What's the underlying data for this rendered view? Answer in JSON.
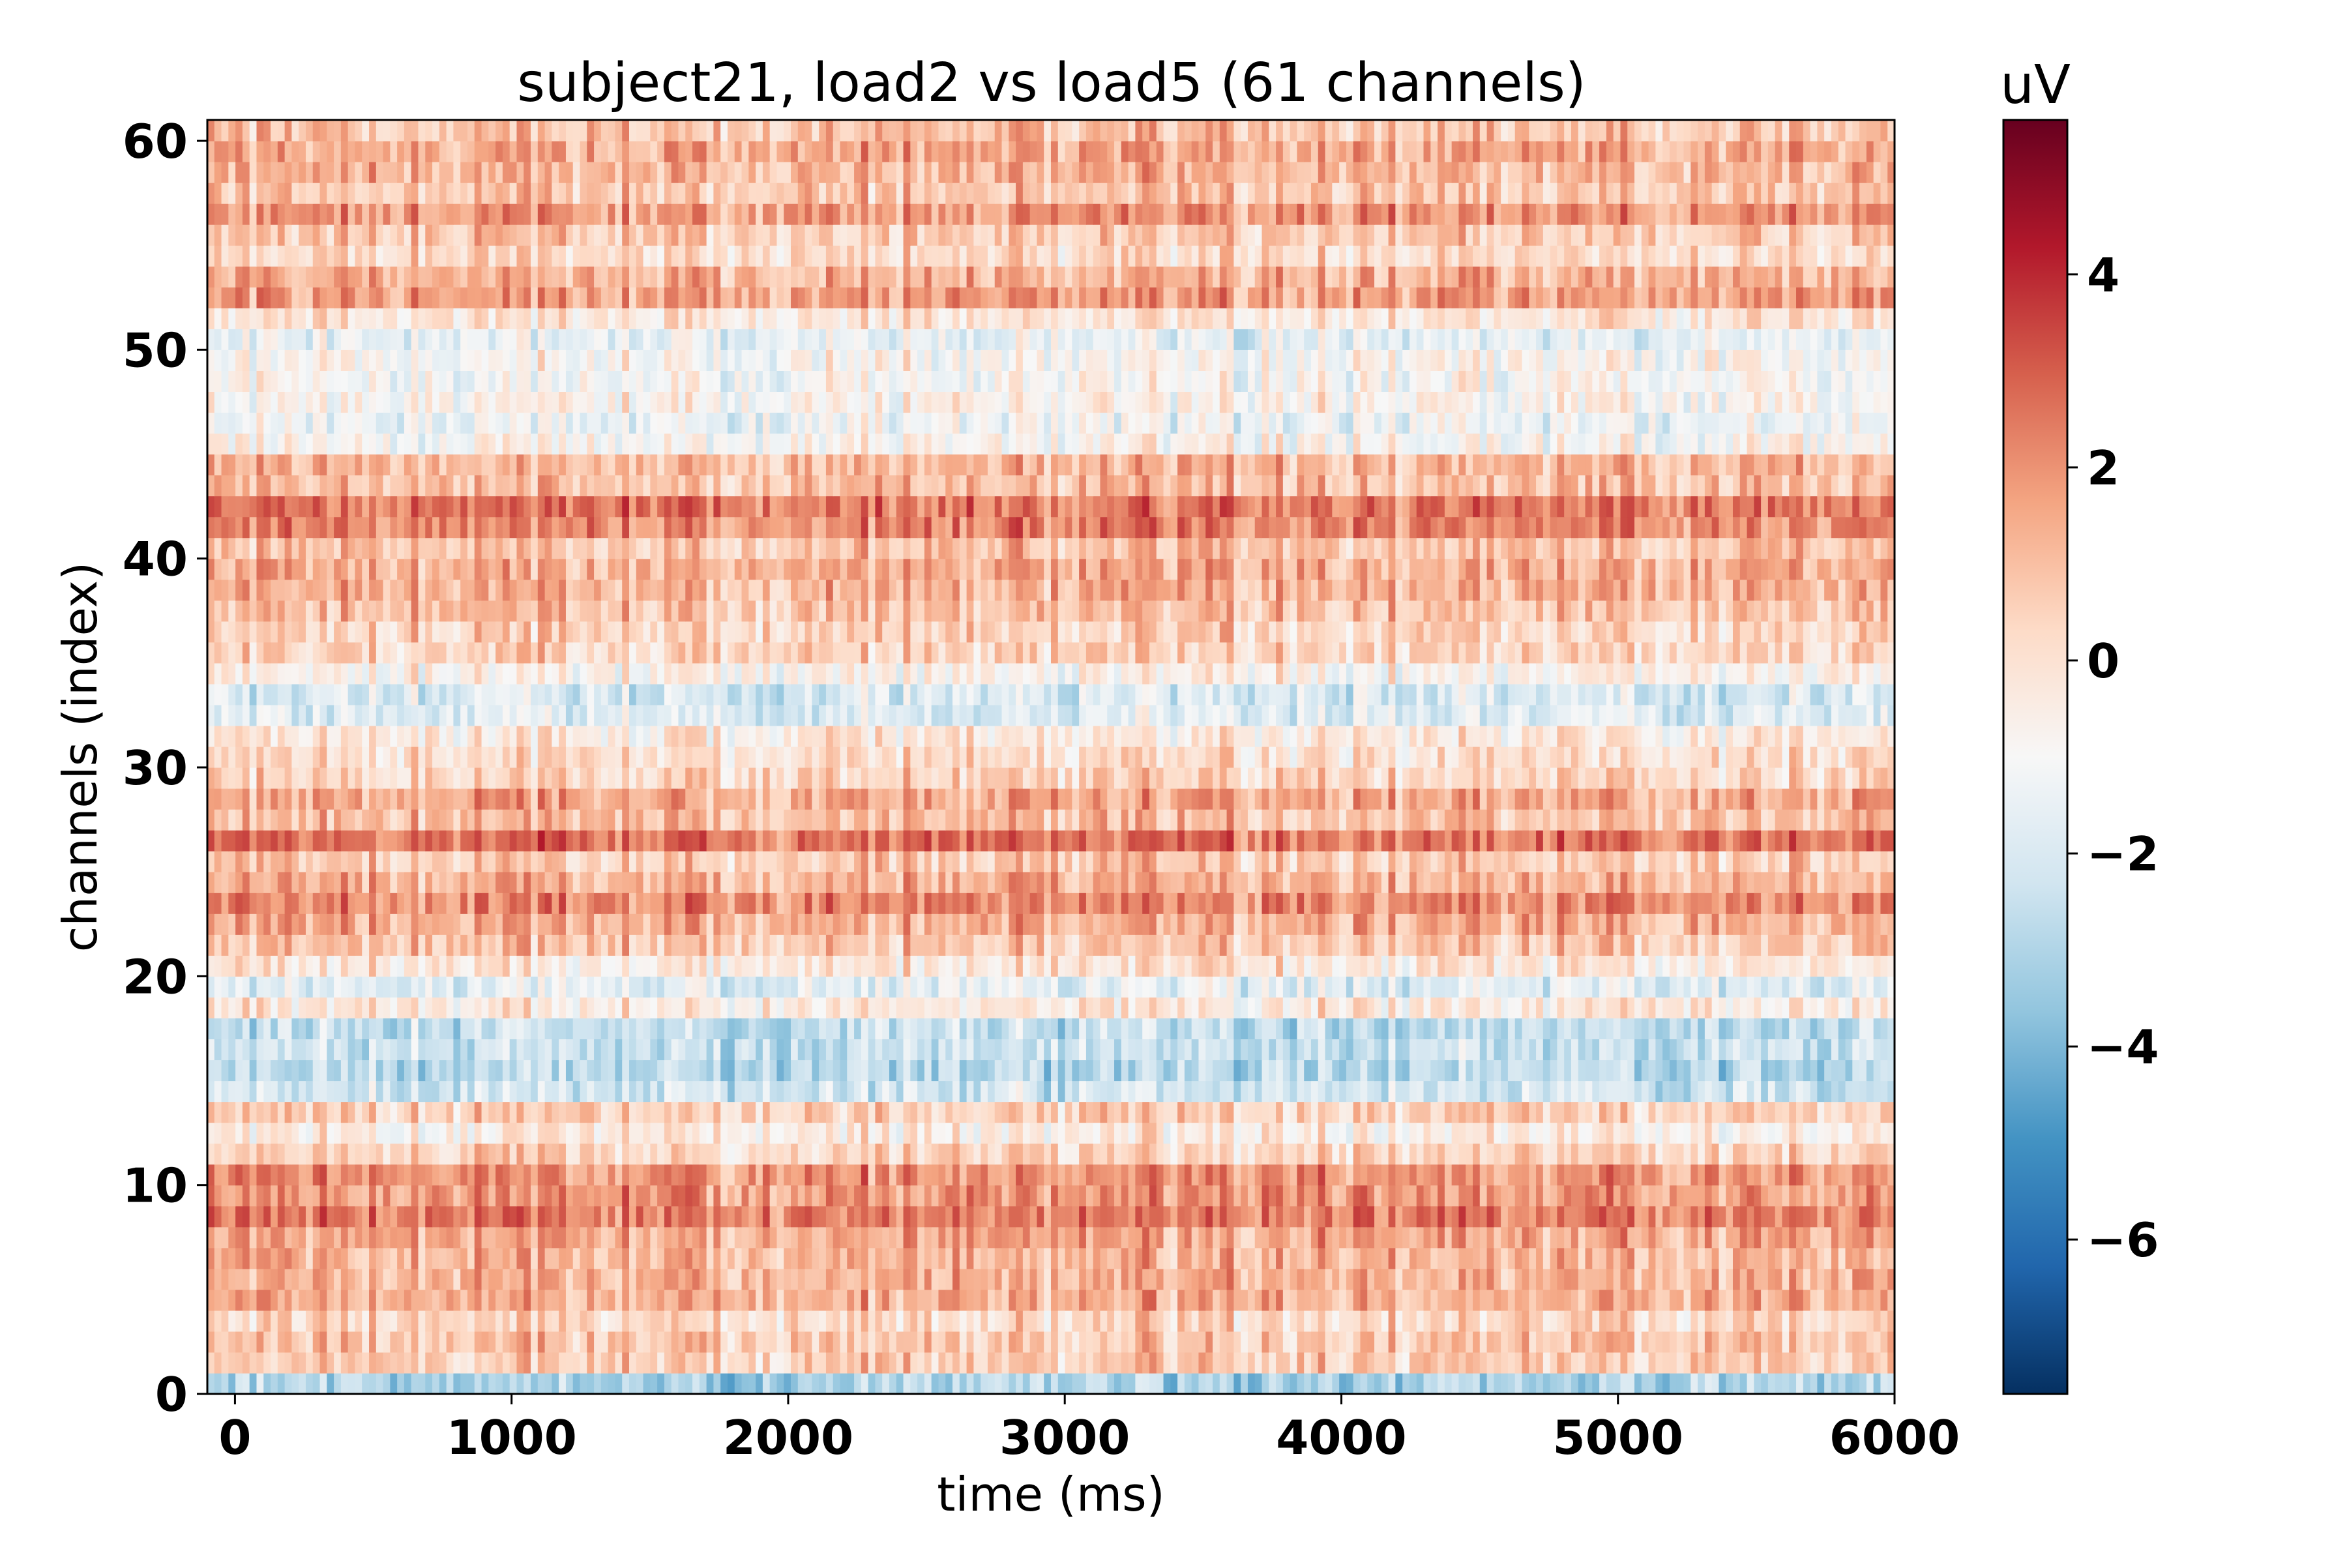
{
  "chart_data": {
    "type": "heatmap",
    "title": "subject21, load2 vs load5 (61 channels)",
    "xlabel": "time (ms)",
    "ylabel": "channels (index)",
    "xlim": [
      -100,
      6000
    ],
    "ylim": [
      0,
      61
    ],
    "x_ticks": [
      {
        "value": 0,
        "label": "0"
      },
      {
        "value": 1000,
        "label": "1000"
      },
      {
        "value": 2000,
        "label": "2000"
      },
      {
        "value": 3000,
        "label": "3000"
      },
      {
        "value": 4000,
        "label": "4000"
      },
      {
        "value": 5000,
        "label": "5000"
      },
      {
        "value": 6000,
        "label": "6000"
      }
    ],
    "y_ticks": [
      {
        "value": 0,
        "label": "0"
      },
      {
        "value": 10,
        "label": "10"
      },
      {
        "value": 20,
        "label": "20"
      },
      {
        "value": 30,
        "label": "30"
      },
      {
        "value": 40,
        "label": "40"
      },
      {
        "value": 50,
        "label": "50"
      },
      {
        "value": 60,
        "label": "60"
      }
    ],
    "n_channels": 61,
    "colorbar": {
      "title": "uV",
      "colormap": "RdBu_r",
      "vmin": -7.6,
      "vmax": 5.6,
      "center": -1.0,
      "ticks": [
        {
          "value": 4,
          "label": "4"
        },
        {
          "value": 2,
          "label": "2"
        },
        {
          "value": 0,
          "label": "0"
        },
        {
          "value": -2,
          "label": "−2"
        },
        {
          "value": -4,
          "label": "−4"
        },
        {
          "value": -6,
          "label": "−6"
        }
      ]
    },
    "channel_baseline_uV": [
      -3.0,
      0.6,
      0.8,
      0.3,
      1.4,
      1.3,
      1.2,
      1.5,
      2.4,
      1.9,
      2.0,
      0.4,
      -0.4,
      0.5,
      -2.2,
      -2.8,
      -2.4,
      -2.6,
      -0.3,
      -1.7,
      -0.2,
      0.8,
      1.4,
      2.2,
      1.3,
      0.7,
      2.6,
      1.0,
      1.5,
      0.4,
      0.1,
      -0.3,
      -1.8,
      -2.0,
      -0.6,
      0.4,
      0.5,
      0.9,
      1.3,
      1.4,
      0.9,
      2.2,
      2.5,
      1.0,
      1.2,
      -0.8,
      -1.3,
      -0.7,
      -0.9,
      -0.8,
      -1.5,
      -0.2,
      1.7,
      1.3,
      0.2,
      0.7,
      1.9,
      0.8,
      1.2,
      1.5,
      0.9
    ]
  }
}
